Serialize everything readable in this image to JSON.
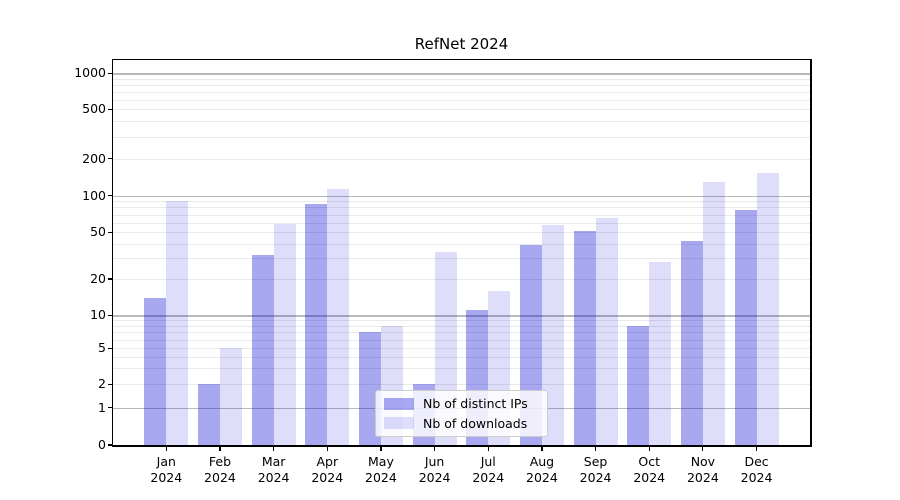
{
  "chart_data": {
    "type": "bar",
    "title": "RefNet 2024",
    "categories": [
      "Jan",
      "Feb",
      "Mar",
      "Apr",
      "May",
      "Jun",
      "Jul",
      "Aug",
      "Sep",
      "Oct",
      "Nov",
      "Dec"
    ],
    "category_year": "2024",
    "series": [
      {
        "name": "Nb of distinct IPs",
        "color": "rgba(0,0,215,0.34)",
        "values": [
          14,
          2,
          32,
          86,
          7,
          2,
          11,
          39,
          51,
          8,
          42,
          77
        ]
      },
      {
        "name": "Nb of downloads",
        "color": "rgba(0,0,215,0.13)",
        "values": [
          90,
          5,
          59,
          113,
          8,
          34,
          16,
          57,
          66,
          28,
          130,
          152
        ]
      }
    ],
    "yticks": [
      0,
      1,
      2,
      5,
      10,
      20,
      50,
      100,
      200,
      500,
      1000
    ],
    "yscale": "symlog",
    "ylim": [
      0,
      1300
    ],
    "grid": true,
    "legend_position": "lower center"
  },
  "colors": {
    "bar_ips": "rgba(0,0,215,0.34)",
    "bar_downloads": "rgba(0,0,215,0.13)",
    "grid_major": "#b9b9b9",
    "grid_minor": "#e9e9e9",
    "spine": "#000000",
    "legend_border": "#cccccc",
    "legend_bg": "rgba(255,255,255,0.8)"
  }
}
